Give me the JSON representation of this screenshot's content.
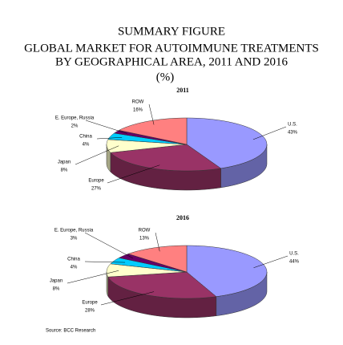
{
  "title": "SUMMARY FIGURE",
  "subtitle": [
    "GLOBAL MARKET FOR AUTOIMMUNE TREATMENTS",
    "BY GEOGRAPHICAL AREA, 2011 AND 2016",
    "(%)"
  ],
  "source": "Source: BCC Research",
  "chart_data": [
    {
      "type": "pie",
      "title": "2011",
      "categories": [
        "U.S.",
        "Europe",
        "Japan",
        "China",
        "E. Europe, Russia",
        "ROW"
      ],
      "values": [
        43,
        27,
        8,
        4,
        2,
        16
      ],
      "value_labels": [
        "43%",
        "27%",
        "8%",
        "4%",
        "2%",
        "16%"
      ],
      "colors": [
        "#9999ff",
        "#993366",
        "#ffffcc",
        "#00ccff",
        "#660066",
        "#ff8080"
      ]
    },
    {
      "type": "pie",
      "title": "2016",
      "categories": [
        "U.S.",
        "Europe",
        "Japan",
        "China",
        "E. Europe, Russia",
        "ROW"
      ],
      "values": [
        44,
        28,
        8,
        4,
        3,
        13
      ],
      "value_labels": [
        "44%",
        "28%",
        "8%",
        "4%",
        "3%",
        "13%"
      ],
      "colors": [
        "#9999ff",
        "#993366",
        "#ffffcc",
        "#00ccff",
        "#660066",
        "#ff8080"
      ]
    }
  ]
}
